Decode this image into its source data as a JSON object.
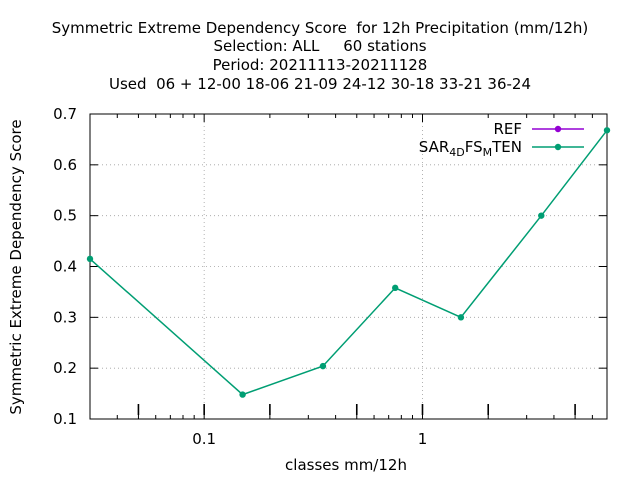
{
  "title_lines": [
    "Symmetric Extreme Dependency Score  for 12h Precipitation (mm/12h)",
    "Selection: ALL     60 stations",
    "Period: 20211113-20211128",
    "Used  06 + 12-00 18-06 21-09 24-12 30-18 33-21 36-24"
  ],
  "chart_data": {
    "type": "line",
    "x_scale": "log",
    "xlabel": "classes mm/12h",
    "ylabel": "Symmetric Extreme Dependency Score",
    "xlim": [
      0.03,
      7.0
    ],
    "ylim": [
      0.1,
      0.7
    ],
    "x_ticks": [
      {
        "value": 0.1,
        "label": "0.1"
      },
      {
        "value": 1,
        "label": "1"
      }
    ],
    "y_ticks": [
      {
        "value": 0.1,
        "label": "0.1"
      },
      {
        "value": 0.2,
        "label": "0.2"
      },
      {
        "value": 0.3,
        "label": "0.3"
      },
      {
        "value": 0.4,
        "label": "0.4"
      },
      {
        "value": 0.5,
        "label": "0.5"
      },
      {
        "value": 0.6,
        "label": "0.6"
      },
      {
        "value": 0.7,
        "label": "0.7"
      }
    ],
    "grid": true,
    "legend_position": "top-right",
    "series": [
      {
        "name": "REF",
        "color": "#9400d3",
        "x": [],
        "y": []
      },
      {
        "name": "SAR4DFSMTEN",
        "label_parts": [
          {
            "text": "SAR",
            "sub": false
          },
          {
            "text": "4",
            "sub": true
          },
          {
            "text": "D",
            "sub": true
          },
          {
            "text": "FS",
            "sub": false
          },
          {
            "text": "M",
            "sub": true
          },
          {
            "text": "TEN",
            "sub": false
          }
        ],
        "color": "#009e73",
        "x": [
          0.03,
          0.15,
          0.35,
          0.75,
          1.5,
          3.5,
          7.0
        ],
        "y": [
          0.415,
          0.148,
          0.204,
          0.358,
          0.3,
          0.5,
          0.668
        ]
      }
    ]
  }
}
